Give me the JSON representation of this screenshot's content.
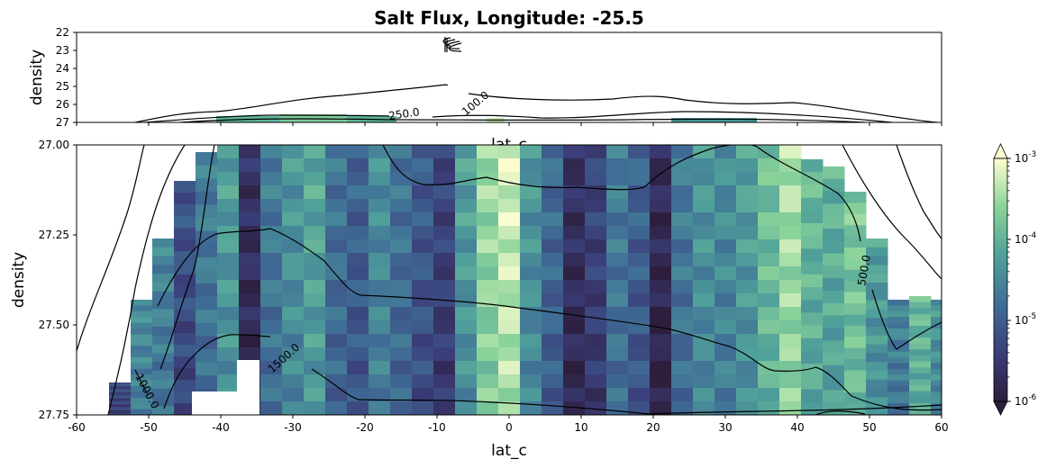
{
  "chart_data": [
    {
      "type": "heatmap",
      "panel": "top",
      "title": "Salt Flux, Longitude: -25.5",
      "xlabel": "lat_c",
      "ylabel": "density",
      "xlim": [
        -60,
        60
      ],
      "ylim": [
        22,
        27
      ],
      "y_inverted": true,
      "yticks": [
        22,
        23,
        24,
        25,
        26,
        27
      ],
      "contour_labels": [
        {
          "text": "250.0",
          "x": -14,
          "y": 26.55
        },
        {
          "text": "100.0",
          "x": -4,
          "y": 26.1
        }
      ]
    },
    {
      "type": "heatmap",
      "panel": "bottom",
      "xlabel": "lat_c",
      "ylabel": "density",
      "xlim": [
        -60,
        60
      ],
      "ylim": [
        27.0,
        27.75
      ],
      "y_inverted": true,
      "xticks": [
        -60,
        -50,
        -40,
        -30,
        -20,
        -10,
        0,
        10,
        20,
        30,
        40,
        50,
        60
      ],
      "yticks": [
        "27.00",
        "27.25",
        "27.50",
        "27.75"
      ],
      "color_scale": "log",
      "colorbar_ticks": [
        "10^-3",
        "10^-4",
        "10^-5",
        "10^-6"
      ],
      "colorbar_range": [
        1e-06,
        0.001
      ],
      "columns": [
        {
          "x": -54,
          "top": 27.66,
          "log": -5.2
        },
        {
          "x": -51,
          "top": 27.43,
          "log": -4.4
        },
        {
          "x": -48,
          "top": 27.26,
          "log": -4.5
        },
        {
          "x": -45,
          "top": 27.1,
          "log": -5.1
        },
        {
          "x": -42,
          "top": 27.02,
          "log": -4.6
        },
        {
          "x": -39,
          "top": 27.0,
          "log": -4.2
        },
        {
          "x": -36,
          "top": 27.0,
          "log": -5.6
        },
        {
          "x": -33,
          "top": 27.0,
          "log": -4.6
        },
        {
          "x": -30,
          "top": 27.0,
          "log": -4.3
        },
        {
          "x": -27,
          "top": 27.0,
          "log": -4.1
        },
        {
          "x": -24,
          "top": 27.0,
          "log": -4.7
        },
        {
          "x": -21,
          "top": 27.0,
          "log": -4.9
        },
        {
          "x": -18,
          "top": 27.0,
          "log": -4.4
        },
        {
          "x": -15,
          "top": 27.0,
          "log": -4.7
        },
        {
          "x": -12,
          "top": 27.0,
          "log": -5.0
        },
        {
          "x": -9,
          "top": 27.0,
          "log": -5.3
        },
        {
          "x": -6,
          "top": 27.0,
          "log": -4.2
        },
        {
          "x": -3,
          "top": 27.0,
          "log": -3.5
        },
        {
          "x": 0,
          "top": 27.0,
          "log": -3.2
        },
        {
          "x": 3,
          "top": 27.0,
          "log": -4.3
        },
        {
          "x": 6,
          "top": 27.0,
          "log": -4.8
        },
        {
          "x": 9,
          "top": 27.0,
          "log": -5.6
        },
        {
          "x": 12,
          "top": 27.0,
          "log": -5.3
        },
        {
          "x": 15,
          "top": 27.0,
          "log": -4.6
        },
        {
          "x": 18,
          "top": 27.0,
          "log": -4.9
        },
        {
          "x": 21,
          "top": 27.0,
          "log": -5.7
        },
        {
          "x": 24,
          "top": 27.0,
          "log": -4.6
        },
        {
          "x": 27,
          "top": 27.0,
          "log": -4.3
        },
        {
          "x": 30,
          "top": 27.0,
          "log": -4.4
        },
        {
          "x": 33,
          "top": 27.0,
          "log": -4.2
        },
        {
          "x": 36,
          "top": 27.0,
          "log": -3.8
        },
        {
          "x": 39,
          "top": 27.0,
          "log": -3.4
        },
        {
          "x": 42,
          "top": 27.04,
          "log": -3.9
        },
        {
          "x": 45,
          "top": 27.06,
          "log": -4.0
        },
        {
          "x": 48,
          "top": 27.13,
          "log": -3.7
        },
        {
          "x": 51,
          "top": 27.26,
          "log": -4.2
        },
        {
          "x": 54,
          "top": 27.43,
          "log": -4.5
        },
        {
          "x": 57,
          "top": 27.42,
          "log": -3.9
        },
        {
          "x": 60,
          "top": 27.43,
          "log": -4.3
        }
      ],
      "contour_labels": [
        {
          "text": "1000.0",
          "x": -51,
          "y": 27.69
        },
        {
          "text": "1500.0",
          "x": -30,
          "y": 27.56
        },
        {
          "text": "500.0",
          "x": 49.5,
          "y": 27.34
        }
      ]
    }
  ]
}
